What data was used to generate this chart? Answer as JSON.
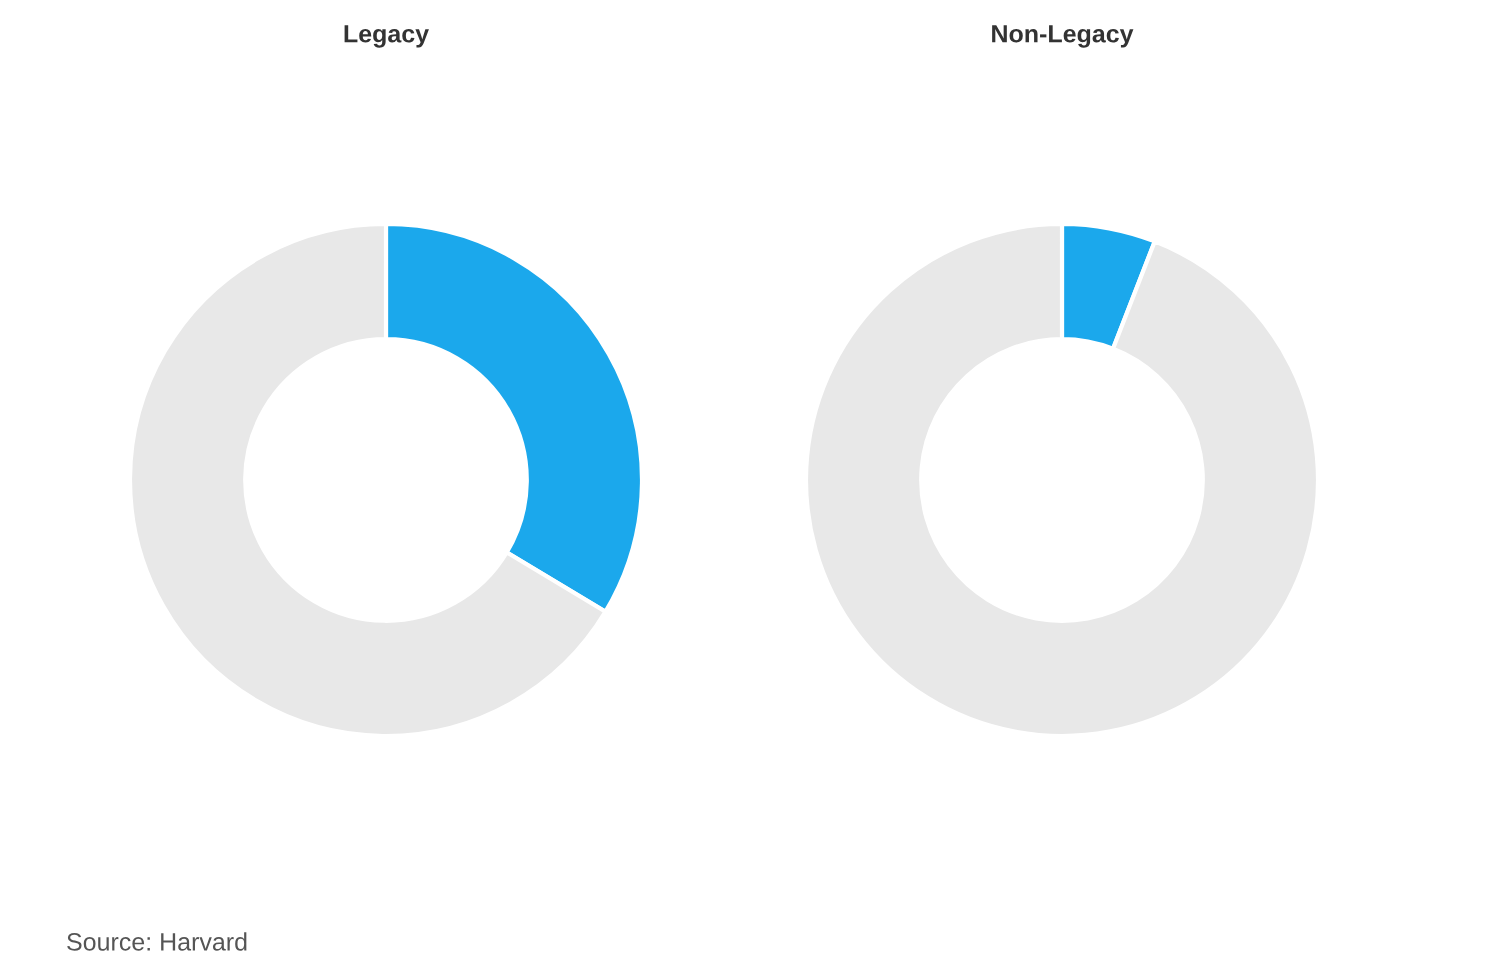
{
  "chart_data": [
    {
      "type": "donut",
      "title": "Legacy",
      "categories": [
        null,
        null
      ],
      "values": [
        33.6,
        66.4
      ],
      "colors": [
        "#1ba8ec",
        "#e8e8e8"
      ]
    },
    {
      "type": "donut",
      "title": "Non-Legacy",
      "categories": [
        null,
        null
      ],
      "values": [
        5.9,
        94.1
      ],
      "colors": [
        "#1ba8ec",
        "#e8e8e8"
      ],
      "annotations": [
        "Source: Harvard"
      ]
    }
  ]
}
